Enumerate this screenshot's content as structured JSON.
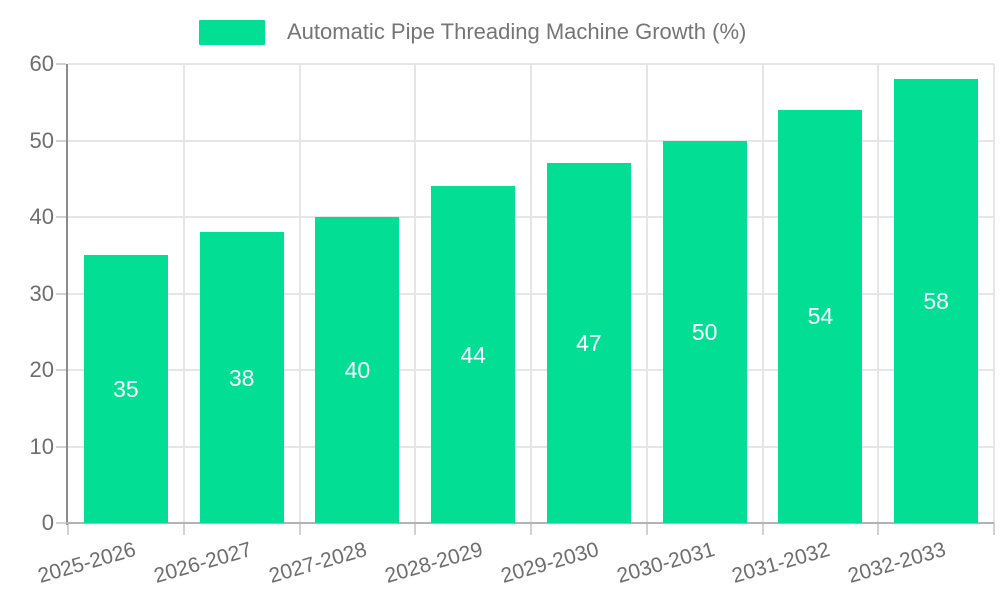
{
  "chart_data": {
    "type": "bar",
    "title": "Automatic Pipe Threading Machine Growth (%)",
    "categories": [
      "2025-2026",
      "2026-2027",
      "2027-2028",
      "2028-2029",
      "2029-2030",
      "2030-2031",
      "2031-2032",
      "2032-2033"
    ],
    "values": [
      35,
      38,
      40,
      44,
      47,
      50,
      54,
      58
    ],
    "xlabel": "",
    "ylabel": "",
    "ylim": [
      0,
      60
    ],
    "yticks": [
      0,
      10,
      20,
      30,
      40,
      50,
      60
    ],
    "grid": true,
    "legend_position": "top-center",
    "bar_color": "#02de94",
    "value_label_color": "#ffffff",
    "axis_text_color": "#6e6e6e",
    "legend_text_color": "#757575",
    "gridline_color": "#e6e6e6",
    "background_color": "#ffffff"
  }
}
